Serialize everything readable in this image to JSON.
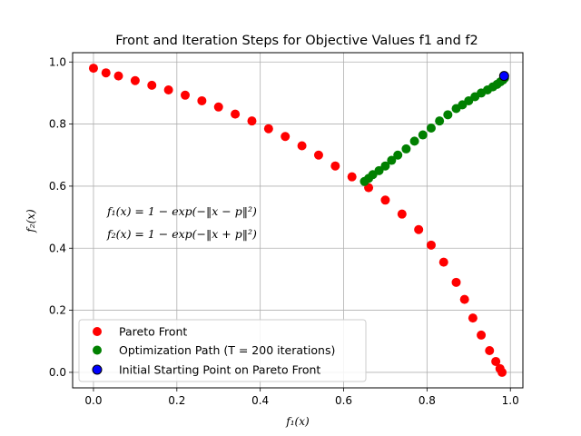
{
  "chart_data": {
    "type": "scatter",
    "title": "Front and Iteration Steps for Objective Values f1 and f2",
    "xlabel": "f₁(x)",
    "ylabel": "f₂(x)",
    "xlim": [
      -0.05,
      1.03
    ],
    "ylim": [
      -0.05,
      1.03
    ],
    "xticks": [
      "0.0",
      "0.2",
      "0.4",
      "0.6",
      "0.8",
      "1.0"
    ],
    "yticks": [
      "0.0",
      "0.2",
      "0.4",
      "0.6",
      "0.8",
      "1.0"
    ],
    "grid": true,
    "legend_position": "lower-left",
    "annotations": [
      "f₁(x) = 1 − exp(−‖x − p‖²)",
      "f₂(x) = 1 − exp(−‖x + p‖²)"
    ],
    "series": [
      {
        "name": "Pareto Front",
        "color": "#ff0000",
        "x": [
          0.0,
          0.03,
          0.06,
          0.1,
          0.14,
          0.18,
          0.22,
          0.26,
          0.3,
          0.34,
          0.38,
          0.42,
          0.46,
          0.5,
          0.54,
          0.58,
          0.62,
          0.66,
          0.7,
          0.74,
          0.78,
          0.81,
          0.84,
          0.87,
          0.89,
          0.91,
          0.93,
          0.95,
          0.965,
          0.975,
          0.98
        ],
        "y": [
          0.98,
          0.965,
          0.955,
          0.94,
          0.925,
          0.91,
          0.893,
          0.875,
          0.855,
          0.832,
          0.81,
          0.785,
          0.76,
          0.73,
          0.7,
          0.665,
          0.63,
          0.595,
          0.555,
          0.51,
          0.46,
          0.41,
          0.355,
          0.29,
          0.235,
          0.175,
          0.12,
          0.07,
          0.035,
          0.012,
          0.0
        ]
      },
      {
        "name": "Optimization Path (T = 200 iterations)",
        "color": "#008000",
        "x": [
          0.65,
          0.66,
          0.67,
          0.685,
          0.7,
          0.715,
          0.73,
          0.75,
          0.77,
          0.79,
          0.81,
          0.83,
          0.85,
          0.87,
          0.885,
          0.9,
          0.915,
          0.93,
          0.945,
          0.958,
          0.968,
          0.976,
          0.982,
          0.986
        ],
        "y": [
          0.615,
          0.625,
          0.637,
          0.65,
          0.665,
          0.683,
          0.7,
          0.72,
          0.745,
          0.765,
          0.787,
          0.81,
          0.83,
          0.85,
          0.862,
          0.875,
          0.888,
          0.9,
          0.91,
          0.92,
          0.928,
          0.936,
          0.942,
          0.948
        ]
      },
      {
        "name": "Initial Starting Point on Pareto Front",
        "color": "#0000ff",
        "x": [
          0.985
        ],
        "y": [
          0.955
        ]
      }
    ]
  }
}
